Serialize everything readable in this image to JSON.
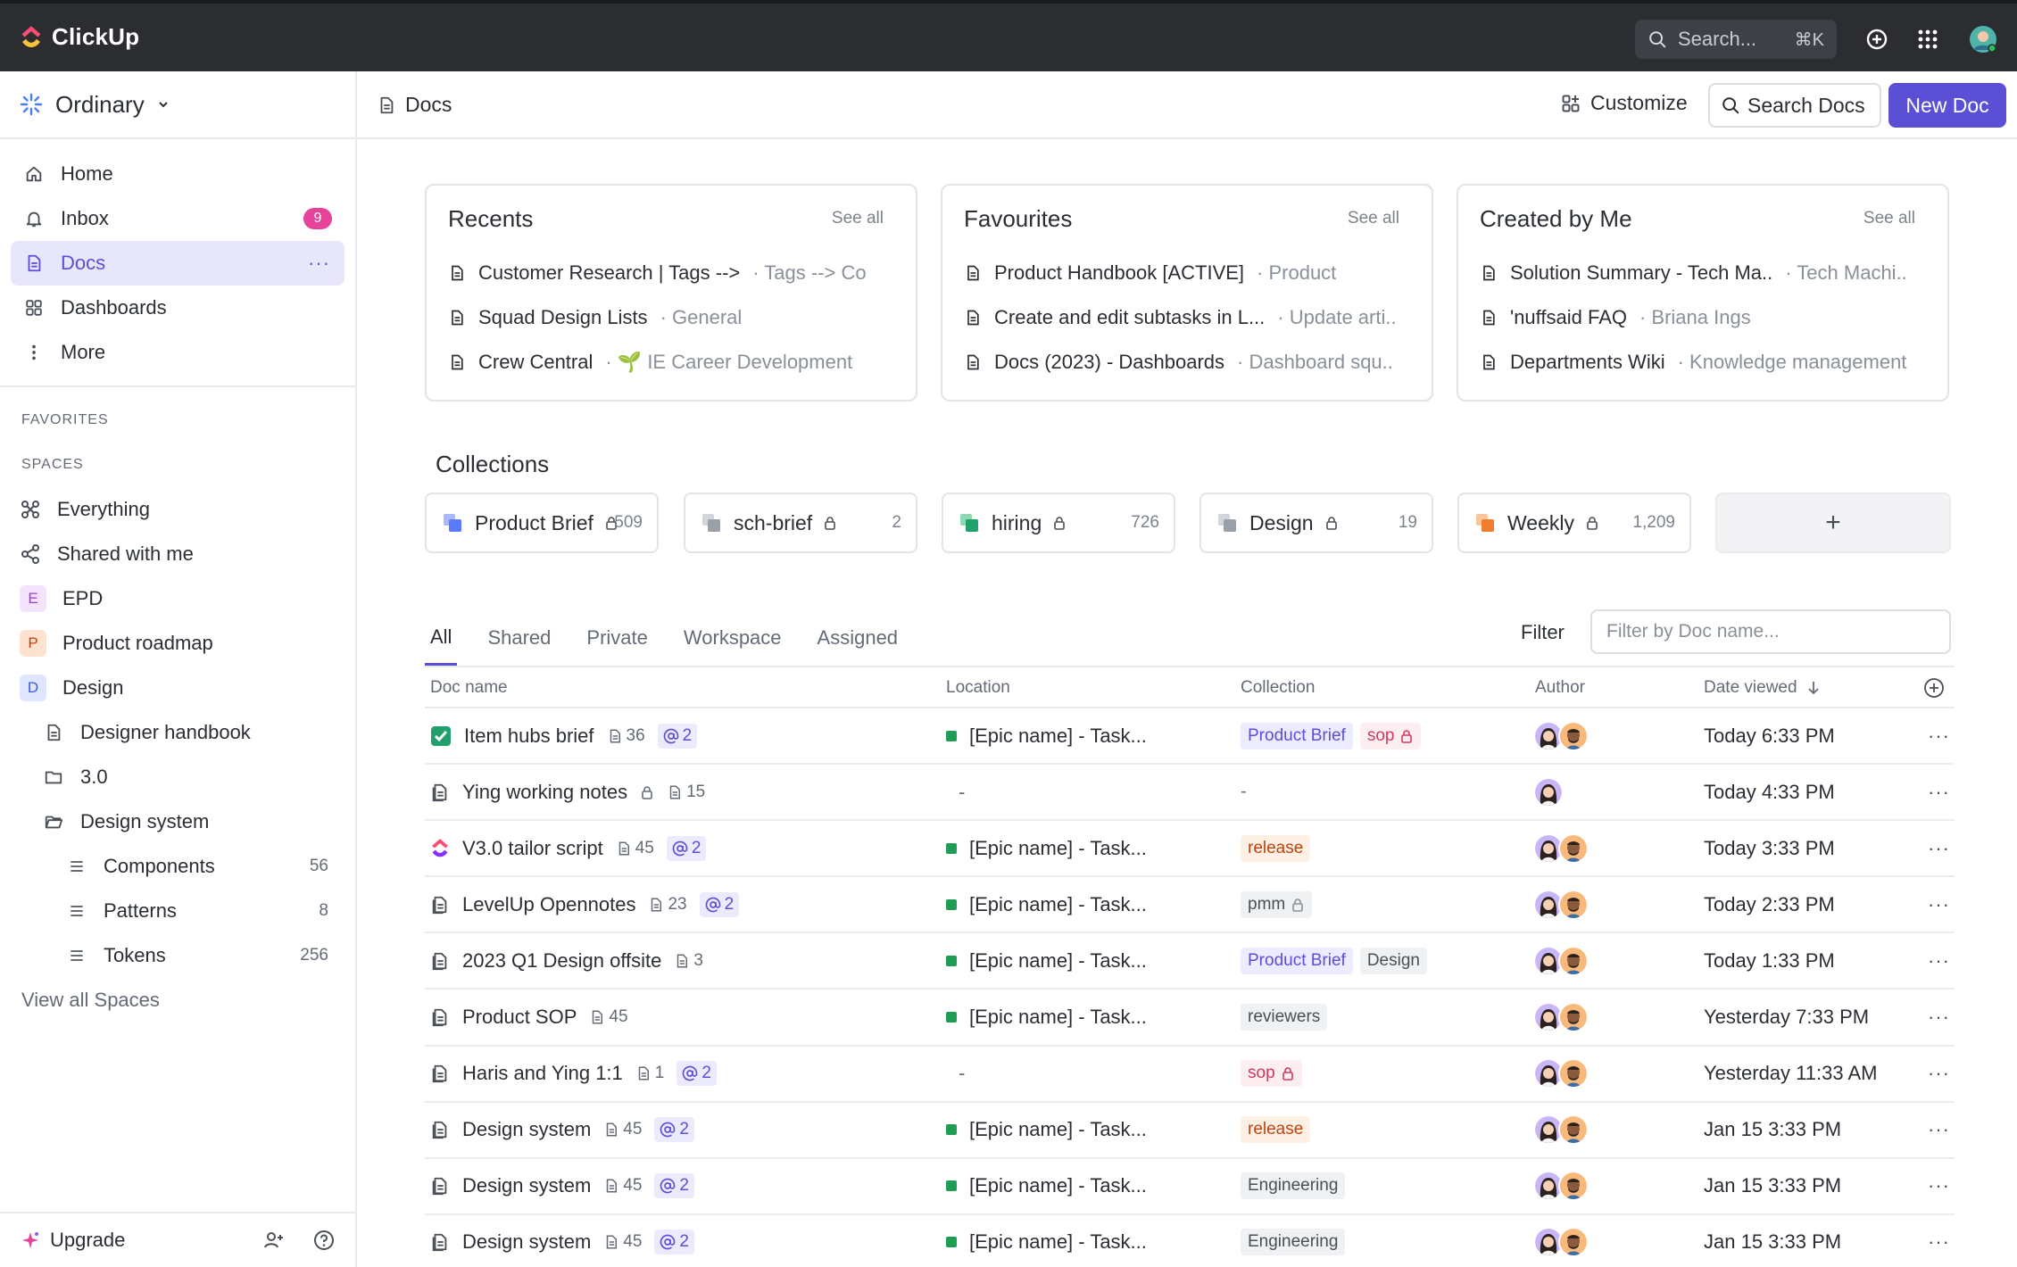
{
  "brand": {
    "name": "ClickUp"
  },
  "topbar": {
    "search_placeholder": "Search...",
    "search_shortcut": "⌘K"
  },
  "sidebar": {
    "workspace": "Ordinary",
    "nav": [
      {
        "label": "Home",
        "icon": "home-icon"
      },
      {
        "label": "Inbox",
        "icon": "bell-icon",
        "badge": "9"
      },
      {
        "label": "Docs",
        "icon": "doc-icon",
        "active": true
      },
      {
        "label": "Dashboards",
        "icon": "grid-icon"
      },
      {
        "label": "More",
        "icon": "more-vertical-icon"
      }
    ],
    "favorites_label": "FAVORITES",
    "spaces_label": "SPACES",
    "spaces": [
      {
        "label": "Everything"
      },
      {
        "label": "Shared with me"
      },
      {
        "label": "EPD",
        "letter": "E"
      },
      {
        "label": "Product roadmap",
        "letter": "P"
      },
      {
        "label": "Design",
        "letter": "D"
      },
      {
        "label": "Designer handbook"
      },
      {
        "label": "3.0"
      },
      {
        "label": "Design system"
      },
      {
        "label": "Components",
        "count": "56"
      },
      {
        "label": "Patterns",
        "count": "8"
      },
      {
        "label": "Tokens",
        "count": "256"
      }
    ],
    "view_all": "View all Spaces",
    "upgrade": "Upgrade"
  },
  "header": {
    "breadcrumb": "Docs",
    "customize": "Customize",
    "search_docs": "Search Docs",
    "new_doc": "New Doc"
  },
  "cards": [
    {
      "title": "Recents",
      "see_all": "See all",
      "rows": [
        {
          "name": "Customer Research | Tags -->",
          "sub": "· Tags --> Co"
        },
        {
          "name": "Squad Design Lists",
          "sub": "· General"
        },
        {
          "name": "Crew Central",
          "sub": "· 🌱 IE Career Development"
        }
      ]
    },
    {
      "title": "Favourites",
      "see_all": "See all",
      "rows": [
        {
          "name": "Product Handbook [ACTIVE]",
          "sub": "· Product"
        },
        {
          "name": "Create and edit subtasks in L...",
          "sub": "· Update arti.."
        },
        {
          "name": "Docs (2023) - Dashboards",
          "sub": "· Dashboard squ.."
        }
      ]
    },
    {
      "title": "Created by Me",
      "see_all": "See all",
      "rows": [
        {
          "name": "Solution Summary - Tech Ma..",
          "sub": "· Tech Machi.."
        },
        {
          "name": "'nuffsaid FAQ",
          "sub": "· Briana Ings"
        },
        {
          "name": "Departments Wiki",
          "sub": "· Knowledge management"
        }
      ]
    }
  ],
  "collections_title": "Collections",
  "collections": [
    {
      "name": "Product Brief",
      "count": "509",
      "color": "#5b7cfa"
    },
    {
      "name": "sch-brief",
      "count": "2",
      "color": "#9aa0a8"
    },
    {
      "name": "hiring",
      "count": "726",
      "color": "#22a06b"
    },
    {
      "name": "Design",
      "count": "19",
      "color": "#9aa0a8"
    },
    {
      "name": "Weekly",
      "count": "1,209",
      "color": "#f07d2e"
    }
  ],
  "add_collection": "+",
  "tabs": [
    "All",
    "Shared",
    "Private",
    "Workspace",
    "Assigned"
  ],
  "filter": {
    "label": "Filter",
    "placeholder": "Filter by Doc name..."
  },
  "table": {
    "columns": [
      "Doc name",
      "Location",
      "Collection",
      "Author",
      "Date viewed"
    ],
    "rows": [
      {
        "name": "Item hubs brief",
        "icon": "check",
        "pages": "36",
        "mentions": "2",
        "location": "[Epic name] - Task...",
        "tags": [
          [
            "Product Brief",
            "blue"
          ],
          [
            "sop",
            "pink",
            true
          ]
        ],
        "avatars": 2,
        "date": "Today 6:33 PM"
      },
      {
        "name": "Ying working notes",
        "icon": "doc",
        "lock": true,
        "pages": "15",
        "location": "-",
        "tags": [
          [
            "-",
            "none"
          ]
        ],
        "avatars": 1,
        "date": "Today 4:33 PM"
      },
      {
        "name": "V3.0 tailor script",
        "icon": "clickup",
        "pages": "45",
        "mentions": "2",
        "location": "[Epic name] - Task...",
        "tags": [
          [
            "release",
            "orange"
          ]
        ],
        "avatars": 2,
        "date": "Today 3:33 PM"
      },
      {
        "name": "LevelUp Opennotes",
        "icon": "doc",
        "pages": "23",
        "mentions": "2",
        "location": "[Epic name] - Task...",
        "tags": [
          [
            "pmm",
            "gray",
            true
          ]
        ],
        "avatars": 2,
        "date": "Today 2:33 PM"
      },
      {
        "name": "2023 Q1 Design offsite",
        "icon": "doc",
        "pages": "3",
        "location": "[Epic name] - Task...",
        "tags": [
          [
            "Product Brief",
            "blue"
          ],
          [
            "Design",
            "gray"
          ]
        ],
        "avatars": 2,
        "date": "Today 1:33 PM"
      },
      {
        "name": "Product SOP",
        "icon": "doc",
        "pages": "45",
        "location": "[Epic name] - Task...",
        "tags": [
          [
            "reviewers",
            "gray"
          ]
        ],
        "avatars": 2,
        "date": "Yesterday 7:33 PM"
      },
      {
        "name": "Haris and Ying 1:1",
        "icon": "doc",
        "pages": "1",
        "mentions": "2",
        "location": "-",
        "tags": [
          [
            "sop",
            "pink",
            true
          ]
        ],
        "avatars": 2,
        "date": "Yesterday 11:33 AM"
      },
      {
        "name": "Design system",
        "icon": "doc",
        "pages": "45",
        "mentions": "2",
        "location": "[Epic name] - Task...",
        "tags": [
          [
            "release",
            "orange"
          ]
        ],
        "avatars": 2,
        "date": "Jan 15 3:33 PM"
      },
      {
        "name": "Design system",
        "icon": "doc",
        "pages": "45",
        "mentions": "2",
        "location": "[Epic name] - Task...",
        "tags": [
          [
            "Engineering",
            "gray"
          ]
        ],
        "avatars": 2,
        "date": "Jan 15 3:33 PM"
      },
      {
        "name": "Design system",
        "icon": "doc",
        "pages": "45",
        "mentions": "2",
        "location": "[Epic name] - Task...",
        "tags": [
          [
            "Engineering",
            "gray"
          ]
        ],
        "avatars": 2,
        "date": "Jan 15 3:33 PM"
      }
    ]
  },
  "colors": {
    "accent": "#5b4fd6",
    "badge": "#e7439a",
    "topbar": "#2b2d31"
  }
}
